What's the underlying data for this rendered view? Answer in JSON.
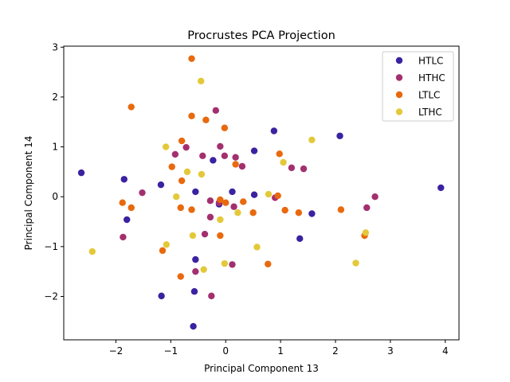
{
  "chart_data": {
    "type": "scatter",
    "title": "Procrustes PCA Projection",
    "xlabel": "Principal Component 13",
    "ylabel": "Principal Component 14",
    "xlim": [
      -2.95,
      4.25
    ],
    "ylim": [
      -2.87,
      3.02
    ],
    "xticks": [
      -2,
      -1,
      0,
      1,
      2,
      3,
      4
    ],
    "yticks": [
      -2,
      -1,
      0,
      1,
      2,
      3
    ],
    "grid": false,
    "legend_position": "top-right",
    "series": [
      {
        "name": "HTLC",
        "color": "#3a22a0",
        "points": [
          [
            -2.63,
            0.48
          ],
          [
            -1.85,
            0.35
          ],
          [
            -1.8,
            -0.46
          ],
          [
            -1.18,
            0.24
          ],
          [
            -1.17,
            -1.99
          ],
          [
            -0.55,
            0.1
          ],
          [
            -0.55,
            -1.26
          ],
          [
            -0.57,
            -1.9
          ],
          [
            -0.59,
            -2.6
          ],
          [
            -0.23,
            0.73
          ],
          [
            -0.12,
            -0.15
          ],
          [
            0.12,
            0.1
          ],
          [
            0.52,
            0.92
          ],
          [
            0.52,
            0.04
          ],
          [
            0.88,
            1.32
          ],
          [
            1.35,
            -0.84
          ],
          [
            1.57,
            -0.34
          ],
          [
            2.08,
            1.22
          ],
          [
            3.92,
            0.18
          ]
        ]
      },
      {
        "name": "HTHC",
        "color": "#a3306e",
        "points": [
          [
            -1.87,
            -0.81
          ],
          [
            -1.52,
            0.08
          ],
          [
            -0.92,
            0.85
          ],
          [
            -0.72,
            0.99
          ],
          [
            -0.42,
            0.82
          ],
          [
            -0.18,
            1.73
          ],
          [
            -0.1,
            1.01
          ],
          [
            -0.02,
            0.82
          ],
          [
            0.18,
            0.79
          ],
          [
            0.3,
            0.61
          ],
          [
            -0.28,
            -0.08
          ],
          [
            -0.12,
            -0.12
          ],
          [
            0.15,
            -0.2
          ],
          [
            -0.28,
            -0.41
          ],
          [
            -0.38,
            -0.75
          ],
          [
            -0.55,
            -1.5
          ],
          [
            -0.26,
            -1.99
          ],
          [
            0.12,
            -1.36
          ],
          [
            0.9,
            -0.02
          ],
          [
            1.2,
            0.58
          ],
          [
            1.42,
            0.56
          ],
          [
            2.57,
            -0.22
          ],
          [
            2.72,
            0.0
          ]
        ]
      },
      {
        "name": "LTLC",
        "color": "#e8690e",
        "points": [
          [
            -1.72,
            1.8
          ],
          [
            -1.88,
            -0.12
          ],
          [
            -1.72,
            -0.22
          ],
          [
            -1.15,
            -1.08
          ],
          [
            -0.98,
            0.6
          ],
          [
            -0.8,
            1.12
          ],
          [
            -0.8,
            0.32
          ],
          [
            -0.82,
            -0.22
          ],
          [
            -0.82,
            -1.6
          ],
          [
            -0.62,
            2.77
          ],
          [
            -0.62,
            1.62
          ],
          [
            -0.62,
            -0.26
          ],
          [
            -0.36,
            1.54
          ],
          [
            -0.02,
            1.38
          ],
          [
            0.18,
            0.65
          ],
          [
            -0.1,
            -0.06
          ],
          [
            0.0,
            -0.12
          ],
          [
            0.32,
            -0.1
          ],
          [
            0.5,
            -0.32
          ],
          [
            -0.1,
            -0.78
          ],
          [
            0.77,
            -1.35
          ],
          [
            0.95,
            0.02
          ],
          [
            0.98,
            0.86
          ],
          [
            1.08,
            -0.27
          ],
          [
            1.33,
            -0.32
          ],
          [
            2.1,
            -0.26
          ],
          [
            2.53,
            -0.78
          ]
        ]
      },
      {
        "name": "LTHC",
        "color": "#e3c93a",
        "points": [
          [
            -2.43,
            -1.1
          ],
          [
            -1.09,
            1.0
          ],
          [
            -1.08,
            -0.96
          ],
          [
            -0.9,
            0.0
          ],
          [
            -0.7,
            0.5
          ],
          [
            -0.45,
            2.32
          ],
          [
            -0.44,
            0.45
          ],
          [
            -0.6,
            -0.78
          ],
          [
            -0.4,
            -1.46
          ],
          [
            -0.1,
            -0.46
          ],
          [
            0.22,
            -0.32
          ],
          [
            0.78,
            0.05
          ],
          [
            0.57,
            -1.01
          ],
          [
            -0.02,
            -1.34
          ],
          [
            1.05,
            0.69
          ],
          [
            1.57,
            1.14
          ],
          [
            2.37,
            -1.33
          ],
          [
            2.55,
            -0.72
          ]
        ]
      }
    ]
  }
}
